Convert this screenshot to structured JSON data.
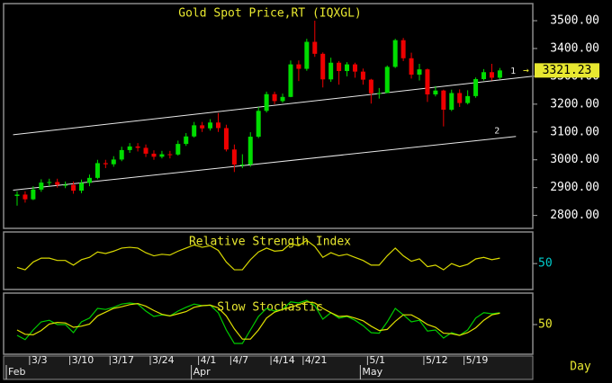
{
  "chart_data": [
    {
      "type": "candlestick",
      "title": "Gold Spot Price,RT (IQXGL)",
      "period": "Day",
      "up_color": "#00dd00",
      "down_color": "#ee0000",
      "open": [
        2870,
        2875,
        2858,
        2893,
        2918,
        2920,
        2910,
        2910,
        2889,
        2917,
        2935,
        2988,
        2984,
        3001,
        3035,
        3048,
        3043,
        3022,
        3011,
        3020,
        3019,
        3057,
        3084,
        3124,
        3113,
        3134,
        3114,
        3037,
        2983,
        2983,
        3083,
        3176,
        3236,
        3211,
        3226,
        3343,
        3327,
        3424,
        3381,
        3289,
        3349,
        3319,
        3343,
        3317,
        3288,
        3239,
        3240,
        3334,
        3430,
        3365,
        3306,
        3325,
        3235,
        3249,
        3180,
        3240,
        3204,
        3229,
        3290,
        3315,
        3295
      ],
      "high": [
        2887,
        2887,
        2905,
        2930,
        2932,
        2932,
        2922,
        2922,
        2929,
        2947,
        3000,
        3000,
        3013,
        3047,
        3060,
        3060,
        3055,
        3034,
        3032,
        3032,
        3069,
        3096,
        3136,
        3136,
        3146,
        3168,
        3126,
        3055,
        3020,
        3099,
        3190,
        3245,
        3245,
        3238,
        3357,
        3357,
        3435,
        3500,
        3386,
        3367,
        3355,
        3351,
        3349,
        3328,
        3291,
        3258,
        3339,
        3435,
        3438,
        3385,
        3345,
        3328,
        3265,
        3252,
        3252,
        3253,
        3250,
        3296,
        3326,
        3345,
        3330
      ],
      "low": [
        2835,
        2846,
        2855,
        2885,
        2905,
        2900,
        2898,
        2878,
        2880,
        2905,
        2930,
        2970,
        2975,
        2995,
        3025,
        3030,
        3010,
        3000,
        3005,
        3005,
        3015,
        3050,
        3080,
        3100,
        3105,
        3100,
        3030,
        2956,
        2970,
        2975,
        3078,
        3170,
        3200,
        3205,
        3225,
        3283,
        3320,
        3370,
        3260,
        3280,
        3270,
        3300,
        3295,
        3270,
        3202,
        3220,
        3240,
        3330,
        3355,
        3292,
        3285,
        3208,
        3228,
        3120,
        3175,
        3190,
        3199,
        3223,
        3285,
        3285,
        3290
      ],
      "close": [
        2875,
        2858,
        2893,
        2918,
        2920,
        2910,
        2910,
        2889,
        2917,
        2935,
        2988,
        2984,
        3001,
        3035,
        3048,
        3043,
        3022,
        3011,
        3020,
        3019,
        3057,
        3084,
        3124,
        3113,
        3134,
        3114,
        3037,
        2983,
        2983,
        3083,
        3176,
        3236,
        3211,
        3226,
        3343,
        3327,
        3424,
        3381,
        3289,
        3349,
        3319,
        3343,
        3317,
        3288,
        3239,
        3240,
        3334,
        3430,
        3365,
        3306,
        3325,
        3235,
        3249,
        3180,
        3240,
        3204,
        3229,
        3290,
        3315,
        3295,
        3321.23
      ],
      "ylim": [
        2760,
        3555
      ],
      "yticks": [
        {
          "value": 2800,
          "label": "2800.00"
        },
        {
          "value": 2900,
          "label": "2900.00"
        },
        {
          "value": 3000,
          "label": "3000.00"
        },
        {
          "value": 3100,
          "label": "3100.00"
        },
        {
          "value": 3200,
          "label": "3200.00"
        },
        {
          "value": 3300,
          "label": "3300.00"
        },
        {
          "value": 3400,
          "label": "3400.00"
        },
        {
          "value": 3500,
          "label": "3500.00"
        }
      ],
      "xticks": [
        {
          "value": 2,
          "label": "3/3"
        },
        {
          "value": 7,
          "label": "3/10"
        },
        {
          "value": 12,
          "label": "3/17"
        },
        {
          "value": 17,
          "label": "3/24"
        },
        {
          "value": 23,
          "label": "4/1"
        },
        {
          "value": 27,
          "label": "4/7"
        },
        {
          "value": 32,
          "label": "4/14"
        },
        {
          "value": 36,
          "label": "4/21"
        },
        {
          "value": 44,
          "label": "5/1"
        },
        {
          "value": 51,
          "label": "5/12"
        },
        {
          "value": 56,
          "label": "5/19"
        }
      ],
      "month_ticks": [
        {
          "value": 0,
          "label": "Feb"
        },
        {
          "value": 23,
          "label": "Apr"
        },
        {
          "value": 44,
          "label": "May"
        }
      ],
      "trendlines": [
        {
          "label": "1",
          "from": [
            -0.5,
            3090
          ],
          "to": [
            64,
            3300
          ]
        },
        {
          "label": "2",
          "from": [
            -0.5,
            2891
          ],
          "to": [
            62,
            3084
          ]
        }
      ]
    },
    {
      "type": "line",
      "title": "Relative Strength Index",
      "ylim": [
        20,
        85
      ],
      "yticks": [
        50
      ],
      "tick_color": "#00cccc",
      "series": [
        {
          "color": "#d8d800",
          "values": [
            45,
            42,
            52,
            57,
            57,
            54,
            54,
            48,
            55,
            58,
            65,
            63,
            66,
            70,
            71,
            70,
            64,
            60,
            62,
            61,
            66,
            70,
            74,
            71,
            73,
            67,
            52,
            42,
            42,
            55,
            65,
            70,
            66,
            67,
            76,
            73,
            80,
            72,
            58,
            64,
            60,
            62,
            58,
            54,
            48,
            48,
            60,
            70,
            60,
            53,
            56,
            46,
            48,
            42,
            50,
            46,
            49,
            56,
            58,
            55,
            57
          ]
        }
      ]
    },
    {
      "type": "line",
      "title": "Slow Stochastic",
      "ylim": [
        0,
        100
      ],
      "yticks": [
        50
      ],
      "tick_color": "#e8e830",
      "series": [
        {
          "color": "#00cc00",
          "values": [
            30,
            22,
            40,
            55,
            58,
            50,
            50,
            35,
            55,
            62,
            80,
            78,
            82,
            88,
            90,
            88,
            75,
            65,
            68,
            66,
            75,
            82,
            88,
            85,
            86,
            72,
            40,
            15,
            15,
            40,
            65,
            80,
            75,
            78,
            92,
            90,
            95,
            85,
            60,
            72,
            62,
            65,
            58,
            48,
            35,
            34,
            55,
            80,
            68,
            55,
            58,
            38,
            40,
            25,
            35,
            30,
            40,
            62,
            72,
            70,
            72
          ]
        },
        {
          "color": "#e0e000",
          "values": [
            40,
            32,
            31,
            39,
            51,
            54,
            53,
            45,
            47,
            51,
            66,
            73,
            80,
            83,
            87,
            89,
            84,
            76,
            69,
            66,
            70,
            74,
            82,
            85,
            86,
            81,
            66,
            42,
            23,
            23,
            40,
            62,
            73,
            78,
            82,
            87,
            92,
            90,
            80,
            72,
            65,
            66,
            62,
            57,
            47,
            39,
            41,
            56,
            68,
            68,
            60,
            50,
            45,
            34,
            33,
            30,
            35,
            44,
            58,
            68,
            71
          ]
        }
      ]
    }
  ]
}
